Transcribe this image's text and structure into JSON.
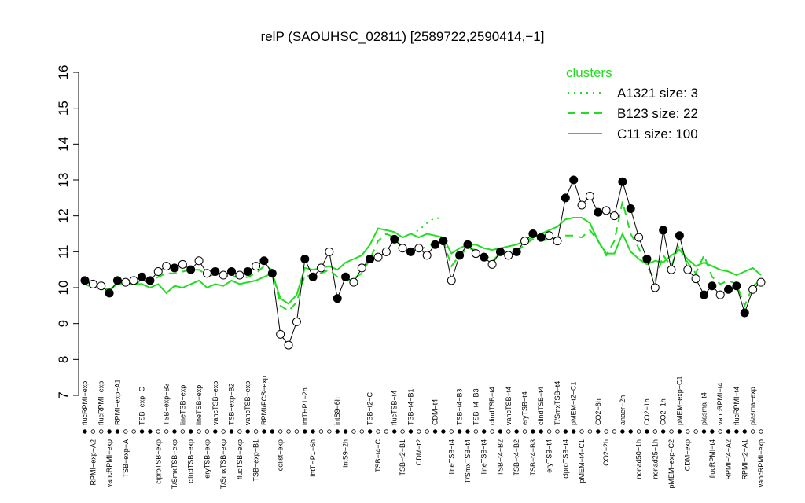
{
  "chart_data": {
    "type": "line",
    "title": "relP (SAOUHSC_02811) [2589722,2590414,−1]",
    "ylim": [
      7,
      16
    ],
    "yticks": [
      7,
      8,
      9,
      10,
      11,
      12,
      13,
      14,
      15,
      16
    ],
    "categories": [
      "flucRPMI−exp",
      "RPMI−exp−A2",
      "flucRPMI−exp",
      "vancRPMI−exp",
      "RPMI−exp−A1",
      "TSB−exp−A",
      null,
      "TSB−exp−C",
      null,
      "ciproTSB−exp",
      "TSB−exp−B3",
      "T/SmxTSB−exp",
      "lineTSB−exp",
      "clindTSB−exp",
      "lineTSB−exp",
      "eryTSB−exp",
      "vancTSB−exp",
      "T/SmxTSB−exp",
      "TSB−exp−B2",
      "flucTSB−exp",
      "vancTSB−exp",
      "TSB−exp−B1",
      "RPMI/FCS−exp",
      null,
      "colist−exp",
      null,
      null,
      "intTHP1−2h",
      "intTHP1−6h",
      null,
      null,
      "intS9−6h",
      "intS9−2h",
      null,
      null,
      "TSB−t2−C",
      "TSB−t4−C",
      null,
      "flucTSB−t4",
      "TSB−t2−B1",
      "TSB−t4−B1",
      "CDM−t2",
      null,
      "CDM−t4",
      null,
      "lineTSB−t4",
      "TSB−t4−B3",
      "T/SmxTSB−t4",
      "TSB−t4−B3",
      "lineTSB−t4",
      "clindTSB−t4",
      "TSB−t4−B2",
      "vancTSB−t4",
      "TSB−t4−B2",
      "eryTSB−t4",
      "TSB−t4−B3",
      "clindTSB−t4",
      "eryTSB−t4",
      "T/SmxTSB−t4",
      "ciproTSB−t4",
      "pMEM−t2−C1",
      "pMEM−t4−C1",
      null,
      "CO2−6h",
      "CO2−2h",
      null,
      "anaer−2h",
      null,
      "nonad50−1h",
      "CO2−1h",
      "nonad25−1h",
      "CO2−1h",
      "pMEM−exp−C2",
      "pMEM−exp−C1",
      "CDM−exp",
      null,
      "plasma−t4",
      "flucRPMI−t4",
      "vancRPMI−t4",
      "RPMI−t4−A2",
      "flucRPMI−t4",
      "RPMI−t2−A1",
      "plasma−exp",
      "vancRPMI−exp"
    ],
    "values": [
      10.2,
      10.1,
      10.05,
      9.85,
      10.2,
      10.15,
      10.2,
      10.3,
      10.2,
      10.45,
      10.6,
      10.55,
      10.65,
      10.5,
      10.75,
      10.4,
      10.45,
      10.35,
      10.45,
      10.35,
      10.45,
      10.6,
      10.75,
      10.4,
      8.7,
      8.4,
      9.05,
      10.8,
      10.3,
      10.55,
      11.0,
      9.7,
      10.3,
      10.15,
      10.55,
      10.8,
      10.85,
      11.0,
      11.35,
      11.1,
      11.0,
      11.1,
      10.9,
      11.2,
      11.3,
      10.2,
      10.9,
      11.2,
      10.95,
      10.85,
      10.65,
      11.0,
      10.9,
      11.0,
      11.3,
      11.5,
      11.4,
      11.45,
      11.3,
      12.5,
      13.0,
      12.3,
      12.55,
      12.1,
      12.15,
      12.0,
      12.95,
      12.2,
      11.4,
      10.8,
      10.0,
      11.6,
      10.5,
      11.45,
      10.5,
      10.25,
      9.8,
      10.05,
      9.8,
      9.95,
      10.05,
      9.3,
      9.95,
      10.15
    ],
    "filled": [
      true,
      false,
      false,
      true,
      true,
      false,
      false,
      true,
      true,
      false,
      false,
      true,
      false,
      true,
      false,
      false,
      true,
      false,
      true,
      false,
      true,
      false,
      true,
      true,
      false,
      false,
      false,
      true,
      true,
      false,
      false,
      true,
      true,
      false,
      false,
      true,
      false,
      false,
      true,
      false,
      true,
      false,
      false,
      true,
      true,
      false,
      true,
      true,
      false,
      true,
      false,
      true,
      false,
      true,
      false,
      true,
      true,
      false,
      false,
      true,
      true,
      false,
      false,
      true,
      false,
      false,
      true,
      true,
      false,
      true,
      false,
      true,
      false,
      true,
      false,
      false,
      true,
      true,
      false,
      true,
      true,
      true,
      false,
      false
    ],
    "legend_title": "clusters",
    "series": [
      {
        "name": "A1321 size: 3",
        "color": "#22dd22",
        "style": "dotted",
        "values": [
          null,
          null,
          null,
          null,
          null,
          null,
          null,
          null,
          null,
          null,
          null,
          null,
          null,
          null,
          null,
          null,
          null,
          null,
          null,
          null,
          null,
          null,
          null,
          null,
          null,
          null,
          null,
          null,
          null,
          null,
          null,
          null,
          null,
          null,
          null,
          null,
          null,
          null,
          null,
          null,
          11.5,
          11.6,
          11.8,
          11.95,
          11.9,
          null,
          null,
          null,
          null,
          null,
          null,
          null,
          null,
          null,
          null,
          null,
          null,
          null,
          null,
          null,
          null,
          null,
          null,
          null,
          null,
          null,
          null,
          null,
          null,
          null,
          null,
          null,
          null,
          null,
          null,
          null,
          null,
          null,
          null,
          null,
          null,
          null,
          null,
          null
        ]
      },
      {
        "name": "B123 size: 22",
        "color": "#22dd22",
        "style": "dashed",
        "values": [
          10.15,
          10.1,
          10.05,
          9.9,
          10.15,
          10.1,
          10.1,
          10.2,
          10.15,
          10.3,
          10.4,
          10.4,
          10.45,
          10.5,
          10.5,
          10.35,
          10.35,
          10.3,
          10.35,
          10.25,
          10.3,
          10.4,
          10.6,
          10.5,
          9.5,
          9.35,
          9.6,
          10.35,
          10.3,
          10.4,
          10.5,
          10.3,
          10.2,
          10.25,
          10.4,
          10.8,
          11.3,
          11.5,
          11.4,
          11.1,
          11.0,
          11.05,
          11.15,
          11.25,
          11.3,
          10.6,
          10.9,
          11.1,
          11.05,
          10.95,
          10.75,
          10.95,
          10.95,
          11.0,
          11.2,
          11.35,
          11.3,
          11.35,
          11.4,
          11.45,
          11.45,
          11.4,
          11.6,
          11.3,
          10.9,
          11.3,
          12.4,
          11.5,
          11.1,
          10.6,
          10.2,
          10.9,
          10.6,
          11.2,
          10.7,
          10.4,
          10.9,
          10.3,
          10.1,
          10.2,
          10.1,
          9.5,
          10.05,
          10.2
        ]
      },
      {
        "name": "C11 size: 100",
        "color": "#22dd22",
        "style": "solid",
        "values": [
          10.1,
          10.0,
          10.0,
          9.95,
          10.1,
          10.1,
          10.1,
          10.1,
          10.0,
          10.1,
          9.85,
          10.05,
          10.0,
          10.1,
          10.2,
          10.0,
          10.1,
          10.05,
          10.2,
          10.1,
          10.15,
          10.2,
          10.3,
          10.4,
          9.7,
          9.55,
          9.8,
          10.55,
          10.5,
          10.55,
          10.6,
          10.5,
          10.7,
          10.8,
          10.9,
          11.2,
          11.65,
          11.6,
          11.55,
          11.4,
          11.5,
          11.4,
          11.5,
          11.45,
          11.4,
          10.95,
          11.1,
          11.2,
          11.2,
          11.1,
          11.05,
          11.1,
          11.15,
          11.2,
          11.3,
          11.4,
          11.5,
          11.6,
          11.7,
          11.9,
          11.95,
          11.95,
          11.8,
          11.3,
          10.95,
          10.95,
          11.5,
          11.0,
          10.8,
          10.65,
          10.75,
          10.7,
          10.9,
          11.05,
          10.8,
          10.6,
          10.7,
          10.6,
          10.5,
          10.45,
          10.35,
          10.45,
          10.55,
          10.35
        ]
      }
    ]
  }
}
